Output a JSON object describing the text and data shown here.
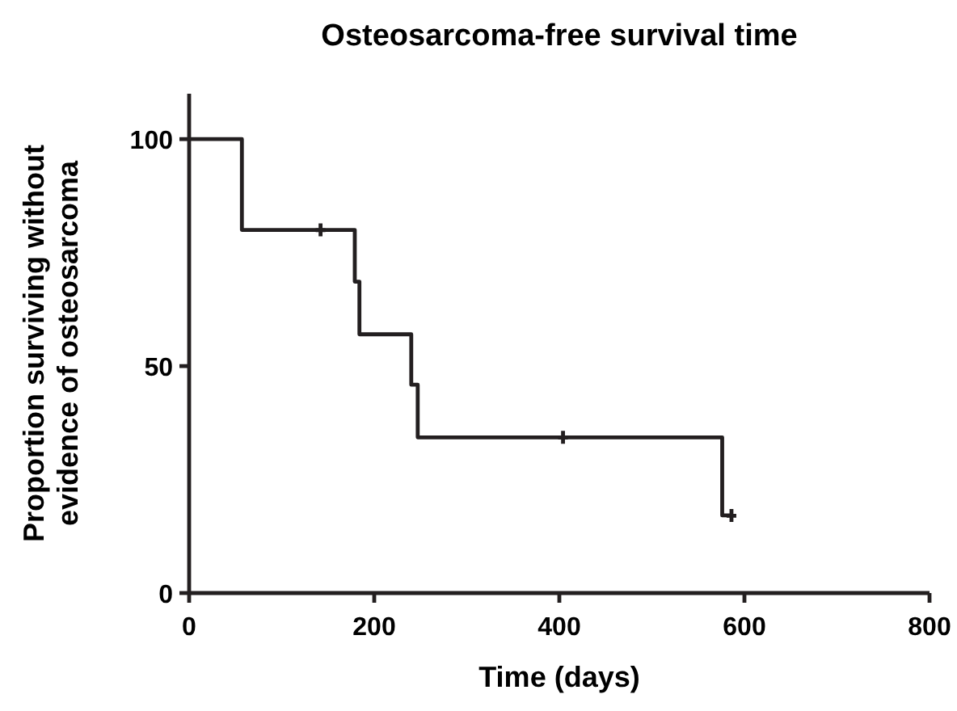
{
  "chart_data": {
    "type": "step",
    "title": "Osteosarcoma-free survival time",
    "xlabel": "Time (days)",
    "ylabel": "Proportion surviving without evidence of osteosarcoma",
    "xlim": [
      0,
      800
    ],
    "xticks": [
      0,
      200,
      400,
      600,
      800
    ],
    "ylim": [
      0,
      110
    ],
    "yticks": [
      0,
      50,
      100
    ],
    "grid": false,
    "series": [
      {
        "color": "#231f20",
        "x": [
          0,
          57,
          179,
          184,
          240,
          247,
          576,
          586
        ],
        "values": [
          100,
          80,
          68.6,
          57,
          45.9,
          34.3,
          17.1,
          17.1
        ]
      },
      {
        "type": "scatter",
        "color": "#231f20",
        "x": [
          142,
          404,
          586
        ],
        "values": [
          80,
          34.3,
          17.1
        ]
      }
    ]
  }
}
